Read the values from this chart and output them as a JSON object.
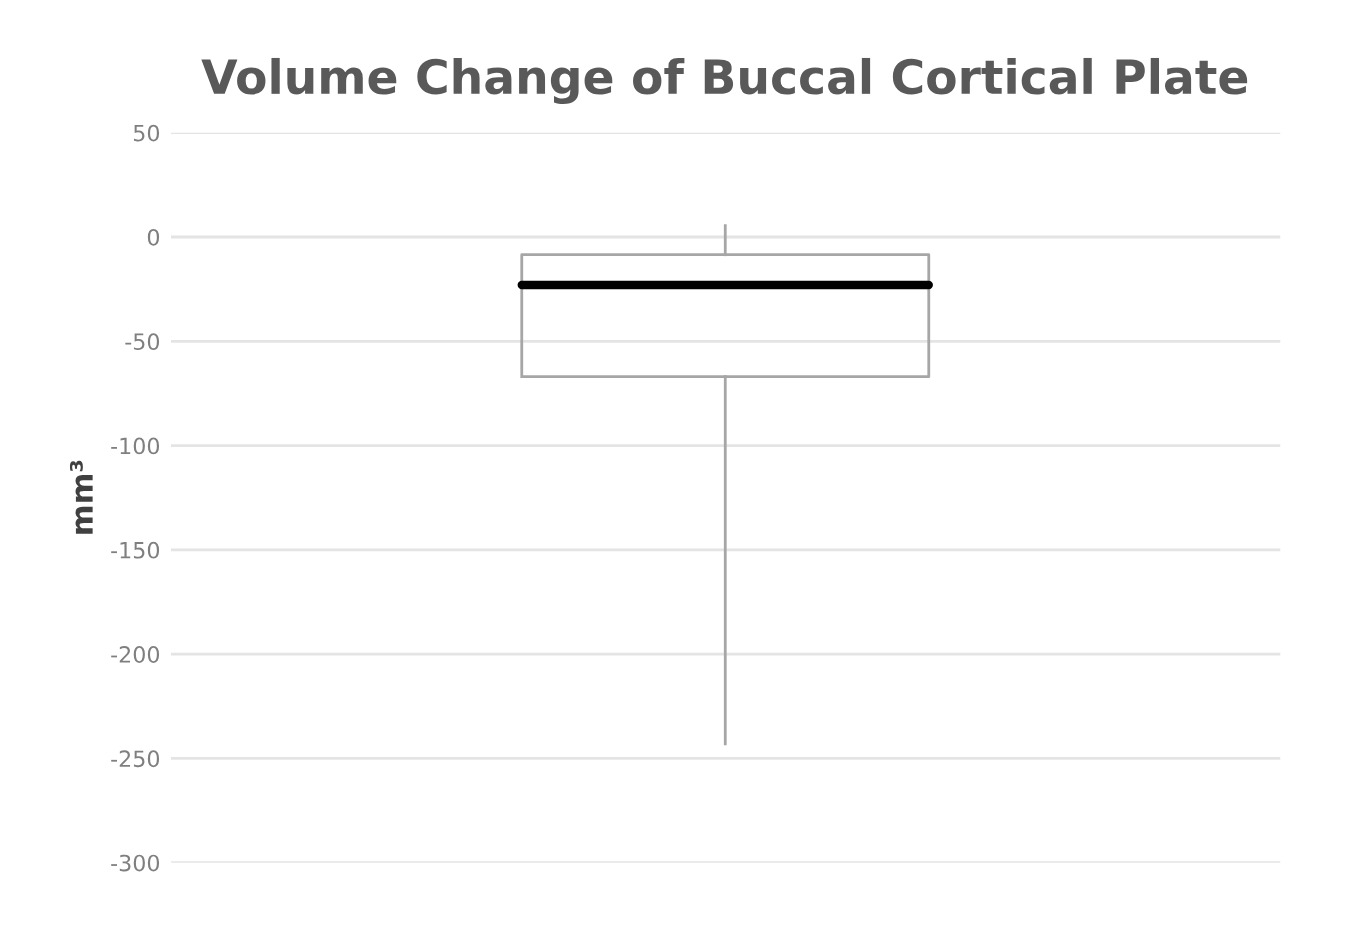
{
  "chart_data": {
    "type": "box",
    "title": "Volume Change of Buccal Cortical Plate",
    "ylabel": "mm³",
    "categories": [
      null
    ],
    "boxes": [
      {
        "low": -243,
        "q1": -67,
        "median": -23,
        "q3": -8.5,
        "high": 5.5
      }
    ],
    "ylim": [
      -300,
      50
    ],
    "yticks": [
      -300,
      -250,
      -200,
      -150,
      -100,
      -50,
      0,
      50
    ],
    "grid": "y",
    "legend": false,
    "tick_labels": "y"
  }
}
